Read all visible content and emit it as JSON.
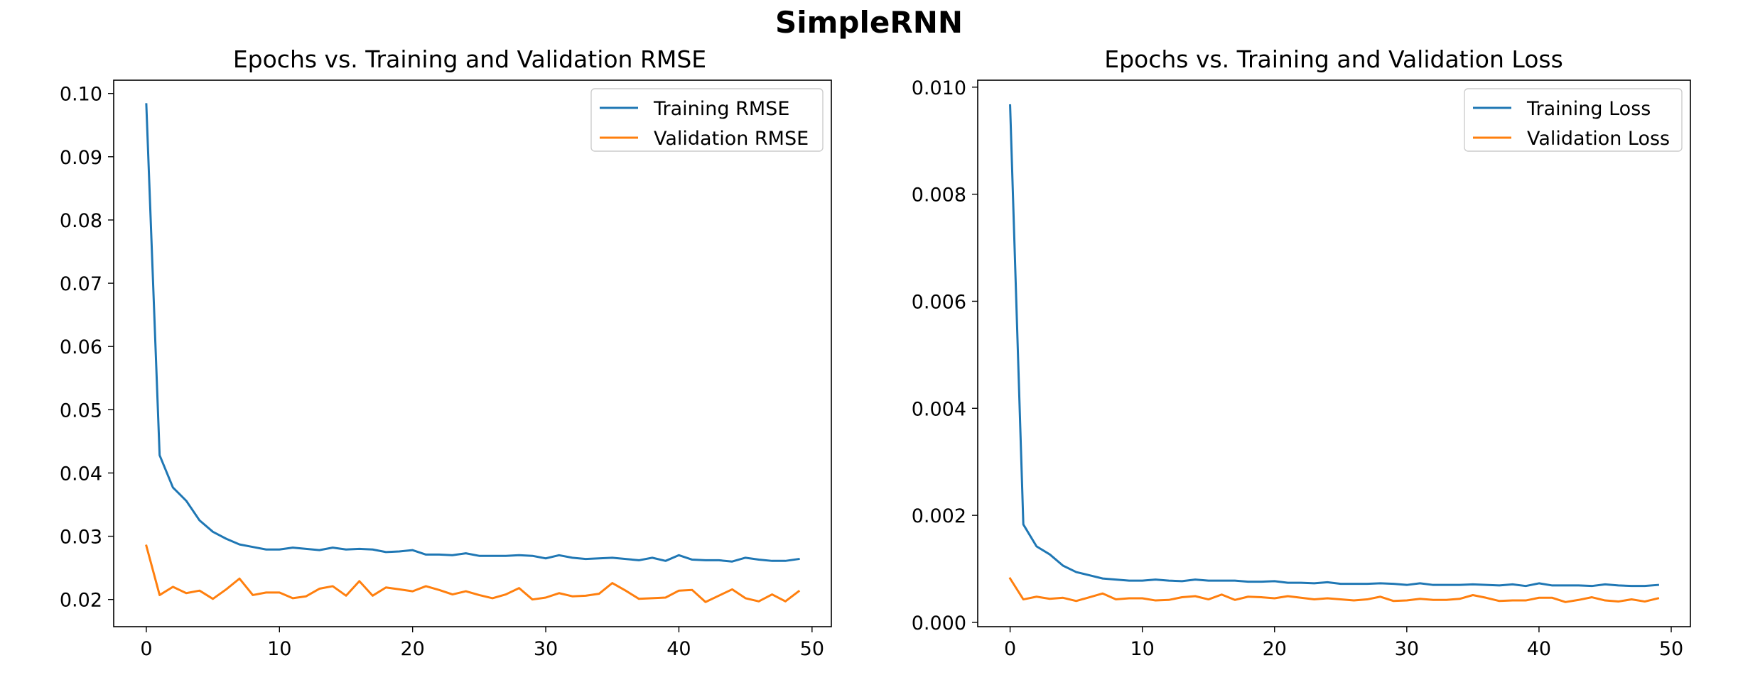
{
  "suptitle": "SimpleRNN",
  "chart_data": [
    {
      "type": "line",
      "title": "Epochs vs. Training and Validation RMSE",
      "xlabel": "",
      "ylabel": "",
      "xlim": [
        -2.45,
        51.45
      ],
      "ylim": [
        0.0157,
        0.1021
      ],
      "xticks": [
        0,
        10,
        20,
        30,
        40,
        50
      ],
      "yticks": [
        0.02,
        0.03,
        0.04,
        0.05,
        0.06,
        0.07,
        0.08,
        0.09,
        0.1
      ],
      "ytick_labels": [
        "0.02",
        "0.03",
        "0.04",
        "0.05",
        "0.06",
        "0.07",
        "0.08",
        "0.09",
        "0.10"
      ],
      "legend": "top-right",
      "grid": false,
      "x": [
        0,
        1,
        2,
        3,
        4,
        5,
        6,
        7,
        8,
        9,
        10,
        11,
        12,
        13,
        14,
        15,
        16,
        17,
        18,
        19,
        20,
        21,
        22,
        23,
        24,
        25,
        26,
        27,
        28,
        29,
        30,
        31,
        32,
        33,
        34,
        35,
        36,
        37,
        38,
        39,
        40,
        41,
        42,
        43,
        44,
        45,
        46,
        47,
        48,
        49
      ],
      "series": [
        {
          "name": "Training RMSE",
          "color": "#1f77b4",
          "values": [
            0.0983,
            0.0428,
            0.0377,
            0.0356,
            0.0325,
            0.0307,
            0.0296,
            0.0287,
            0.0283,
            0.0279,
            0.0279,
            0.0282,
            0.028,
            0.0278,
            0.0282,
            0.0279,
            0.028,
            0.0279,
            0.0275,
            0.0276,
            0.0278,
            0.0271,
            0.0271,
            0.027,
            0.0273,
            0.0269,
            0.0269,
            0.0269,
            0.027,
            0.0269,
            0.0265,
            0.027,
            0.0266,
            0.0264,
            0.0265,
            0.0266,
            0.0264,
            0.0262,
            0.0266,
            0.0261,
            0.027,
            0.0263,
            0.0262,
            0.0262,
            0.026,
            0.0266,
            0.0263,
            0.0261,
            0.0261,
            0.0264
          ]
        },
        {
          "name": "Validation RMSE",
          "color": "#ff7f0e",
          "values": [
            0.0285,
            0.0207,
            0.022,
            0.021,
            0.0214,
            0.0201,
            0.0216,
            0.0233,
            0.0207,
            0.0211,
            0.0211,
            0.0202,
            0.0205,
            0.0217,
            0.0221,
            0.0206,
            0.0229,
            0.0206,
            0.0219,
            0.0216,
            0.0213,
            0.0221,
            0.0215,
            0.0208,
            0.0213,
            0.0207,
            0.0202,
            0.0208,
            0.0218,
            0.02,
            0.0203,
            0.021,
            0.0205,
            0.0206,
            0.0209,
            0.0226,
            0.0214,
            0.0201,
            0.0202,
            0.0203,
            0.0214,
            0.0215,
            0.0196,
            0.0206,
            0.0216,
            0.0202,
            0.0197,
            0.0208,
            0.0197,
            0.0213
          ]
        }
      ]
    },
    {
      "type": "line",
      "title": "Epochs vs. Training and Validation Loss",
      "xlabel": "",
      "ylabel": "",
      "xlim": [
        -2.45,
        51.45
      ],
      "ylim": [
        -8e-05,
        0.01013
      ],
      "xticks": [
        0,
        10,
        20,
        30,
        40,
        50
      ],
      "yticks": [
        0.0,
        0.002,
        0.004,
        0.006,
        0.008,
        0.01
      ],
      "ytick_labels": [
        "0.000",
        "0.002",
        "0.004",
        "0.006",
        "0.008",
        "0.010"
      ],
      "legend": "top-right",
      "grid": false,
      "x": [
        0,
        1,
        2,
        3,
        4,
        5,
        6,
        7,
        8,
        9,
        10,
        11,
        12,
        13,
        14,
        15,
        16,
        17,
        18,
        19,
        20,
        21,
        22,
        23,
        24,
        25,
        26,
        27,
        28,
        29,
        30,
        31,
        32,
        33,
        34,
        35,
        36,
        37,
        38,
        39,
        40,
        41,
        42,
        43,
        44,
        45,
        46,
        47,
        48,
        49
      ],
      "series": [
        {
          "name": "Training Loss",
          "color": "#1f77b4",
          "values": [
            0.00966,
            0.00183,
            0.00142,
            0.00127,
            0.00106,
            0.00094,
            0.00088,
            0.00082,
            0.0008,
            0.00078,
            0.00078,
            0.0008,
            0.00078,
            0.00077,
            0.0008,
            0.00078,
            0.00078,
            0.00078,
            0.00076,
            0.00076,
            0.00077,
            0.00074,
            0.00074,
            0.00073,
            0.00075,
            0.00072,
            0.00072,
            0.00072,
            0.00073,
            0.00072,
            0.0007,
            0.00073,
            0.0007,
            0.0007,
            0.0007,
            0.00071,
            0.0007,
            0.00069,
            0.00071,
            0.00068,
            0.00073,
            0.00069,
            0.00069,
            0.00069,
            0.00068,
            0.00071,
            0.00069,
            0.00068,
            0.00068,
            0.0007
          ]
        },
        {
          "name": "Validation Loss",
          "color": "#ff7f0e",
          "values": [
            0.00082,
            0.00043,
            0.00048,
            0.00044,
            0.00046,
            0.0004,
            0.00047,
            0.00054,
            0.00043,
            0.00045,
            0.00045,
            0.00041,
            0.00042,
            0.00047,
            0.00049,
            0.00043,
            0.00052,
            0.00042,
            0.00048,
            0.00047,
            0.00045,
            0.00049,
            0.00046,
            0.00043,
            0.00045,
            0.00043,
            0.00041,
            0.00043,
            0.00048,
            0.0004,
            0.00041,
            0.00044,
            0.00042,
            0.00042,
            0.00044,
            0.00051,
            0.00046,
            0.0004,
            0.00041,
            0.00041,
            0.00046,
            0.00046,
            0.00038,
            0.00042,
            0.00047,
            0.00041,
            0.00039,
            0.00043,
            0.00039,
            0.00045
          ]
        }
      ]
    }
  ]
}
